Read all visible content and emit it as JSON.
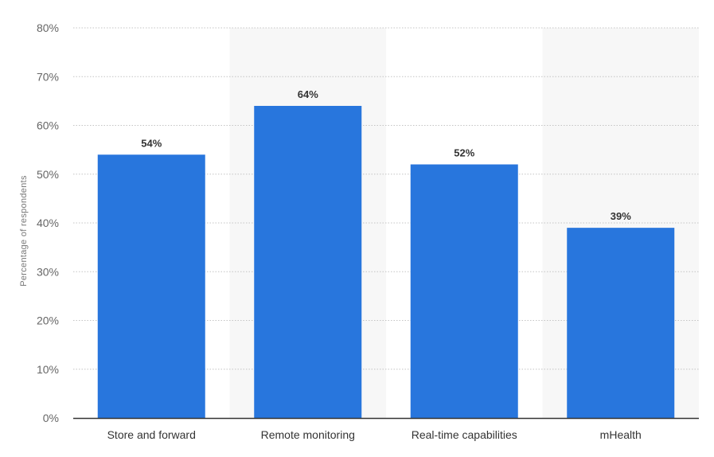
{
  "chart_data": {
    "type": "bar",
    "categories": [
      "Store and forward",
      "Remote monitoring",
      "Real-time capabilities",
      "mHealth"
    ],
    "values": [
      54,
      64,
      52,
      39
    ],
    "value_labels": [
      "54%",
      "64%",
      "52%",
      "39%"
    ],
    "ylabel": "Percentage of respondents",
    "xlabel": "",
    "ylim": [
      0,
      80
    ],
    "yticks": [
      0,
      10,
      20,
      30,
      40,
      50,
      60,
      70,
      80
    ],
    "ytick_labels": [
      "0%",
      "10%",
      "20%",
      "30%",
      "40%",
      "50%",
      "60%",
      "70%",
      "80%"
    ],
    "grid": true,
    "legend": false,
    "colors": {
      "bar": "#2876dd",
      "alt_band": "#f7f7f7",
      "axis": "#333333"
    }
  }
}
